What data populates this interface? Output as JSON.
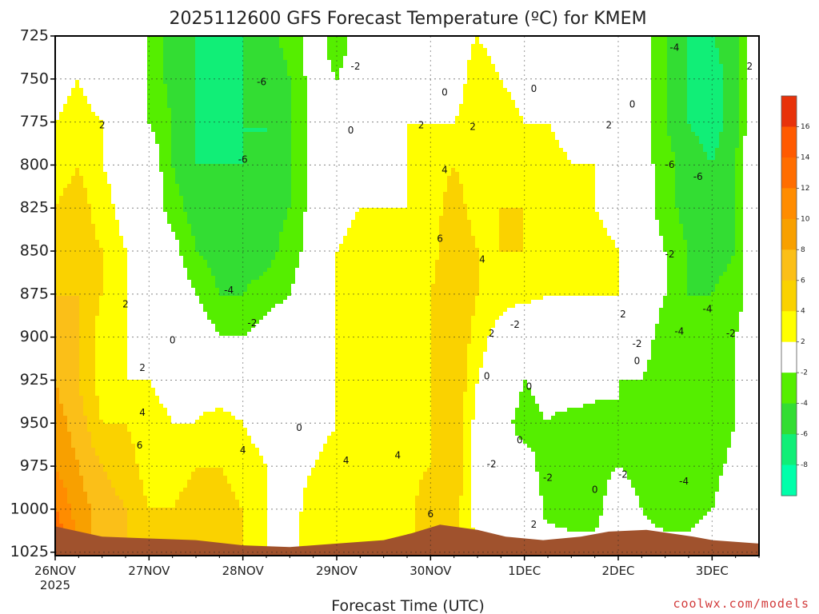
{
  "title": "2025112600 GFS Forecast Temperature (ºC) for KMEM",
  "credit": "coolwx.com/models",
  "chart_data": {
    "type": "heatmap",
    "title": "2025112600 GFS Forecast Temperature (ºC) for KMEM",
    "xlabel": "Forecast Time (UTC)",
    "ylabel": "",
    "x_ticks": [
      {
        "label": "26NOV",
        "sub": "2025"
      },
      {
        "label": "27NOV",
        "sub": ""
      },
      {
        "label": "28NOV",
        "sub": ""
      },
      {
        "label": "29NOV",
        "sub": ""
      },
      {
        "label": "30NOV",
        "sub": ""
      },
      {
        "label": "1DEC",
        "sub": ""
      },
      {
        "label": "2DEC",
        "sub": ""
      },
      {
        "label": "3DEC",
        "sub": ""
      }
    ],
    "x_range_days": [
      0,
      7.5
    ],
    "y_ticks": [
      725,
      750,
      775,
      800,
      825,
      850,
      875,
      900,
      925,
      950,
      975,
      1000,
      1025
    ],
    "y_range": [
      725,
      1027
    ],
    "y_inverted": true,
    "grid": true,
    "colorbar": {
      "labels": [
        16,
        14,
        12,
        10,
        8,
        6,
        4,
        2,
        -2,
        -4,
        -6,
        -8
      ],
      "bins": [
        {
          "min": 16,
          "max": 18,
          "color": "#e8320a"
        },
        {
          "min": 14,
          "max": 16,
          "color": "#ff5a00"
        },
        {
          "min": 12,
          "max": 14,
          "color": "#ff6d00"
        },
        {
          "min": 10,
          "max": 12,
          "color": "#ff8c00"
        },
        {
          "min": 8,
          "max": 10,
          "color": "#f8a000"
        },
        {
          "min": 6,
          "max": 8,
          "color": "#fbbf18"
        },
        {
          "min": 4,
          "max": 6,
          "color": "#fad200"
        },
        {
          "min": 2,
          "max": 4,
          "color": "#ffff00"
        },
        {
          "min": -2,
          "max": 2,
          "color": "#ffffff"
        },
        {
          "min": -4,
          "max": -2,
          "color": "#55ee00"
        },
        {
          "min": -6,
          "max": -4,
          "color": "#33dd33"
        },
        {
          "min": -8,
          "max": -6,
          "color": "#11ee77"
        },
        {
          "min": -10,
          "max": -8,
          "color": "#00ffaa"
        }
      ]
    },
    "field": {
      "x_days": [
        0,
        0.25,
        0.5,
        0.75,
        1,
        1.25,
        1.5,
        1.75,
        2,
        2.25,
        2.5,
        2.75,
        3,
        3.25,
        3.5,
        3.75,
        4,
        4.25,
        4.5,
        4.75,
        5,
        5.25,
        5.5,
        5.75,
        6,
        6.25,
        6.5,
        6.75,
        7,
        7.25,
        7.5
      ],
      "levels_hpa": [
        725,
        750,
        775,
        800,
        825,
        850,
        875,
        900,
        925,
        950,
        975,
        1000,
        1025
      ],
      "temps_c": [
        [
          0,
          2,
          0,
          -1,
          -2,
          -5,
          -6,
          -7,
          -6,
          -5,
          -3,
          -1,
          -3,
          -1,
          0,
          1,
          1,
          1,
          2,
          1,
          0,
          0,
          0,
          0,
          0,
          -1,
          -4,
          -6,
          -6,
          -5,
          2
        ],
        [
          1,
          2,
          0,
          -1,
          -2,
          -5,
          -6,
          -7,
          -6,
          -6,
          -4,
          -1,
          -2,
          -1,
          0,
          1,
          2,
          1,
          3,
          2,
          1,
          0,
          1,
          0,
          0,
          -1,
          -4,
          -6,
          -7,
          -5,
          2
        ],
        [
          2,
          3,
          2,
          0,
          -2,
          -4,
          -6,
          -7,
          -6,
          -6,
          -4,
          -1,
          -1,
          0,
          1,
          2,
          2,
          2,
          3,
          3,
          2,
          2,
          1,
          1,
          0,
          -1,
          -4,
          -6,
          -7,
          -5,
          2
        ],
        [
          3,
          4,
          2,
          1,
          0,
          -4,
          -6,
          -6,
          -6,
          -6,
          -4,
          -1,
          0,
          0,
          1,
          2,
          3,
          4,
          3,
          4,
          3,
          3,
          2,
          2,
          1,
          -1,
          -3,
          -5,
          -6,
          -4,
          2
        ],
        [
          4,
          5,
          3,
          1,
          0,
          -3,
          -5,
          -6,
          -6,
          -5,
          -4,
          -1,
          1,
          2,
          2,
          2,
          3,
          5,
          3,
          4,
          4,
          3,
          3,
          2,
          1,
          -1,
          -3,
          -5,
          -6,
          -4,
          1
        ],
        [
          5,
          5,
          4,
          2,
          0,
          -1,
          -4,
          -5,
          -5,
          -5,
          -3,
          -1,
          2,
          3,
          3,
          3,
          3,
          6,
          4,
          4,
          4,
          3,
          3,
          3,
          2,
          0,
          -2,
          -4,
          -5,
          -4,
          1
        ],
        [
          6,
          6,
          4,
          2,
          1,
          0,
          -2,
          -4,
          -4,
          -3,
          -2,
          0,
          2,
          3,
          3,
          3,
          4,
          6,
          4,
          3,
          3,
          2,
          2,
          2,
          2,
          0,
          -2,
          -4,
          -4,
          -3,
          0
        ],
        [
          7,
          6,
          3,
          2,
          1,
          1,
          0,
          -2,
          -2,
          -1,
          0,
          0,
          2,
          3,
          3,
          3,
          4,
          6,
          3,
          1,
          -2,
          0,
          1,
          1,
          0,
          -1,
          -3,
          -4,
          -4,
          -2,
          0
        ],
        [
          8,
          6,
          3,
          2,
          2,
          1,
          1,
          0,
          0,
          0,
          0,
          1,
          2,
          2,
          3,
          3,
          4,
          6,
          2,
          0,
          -2,
          -1,
          0,
          -1,
          -2,
          -2,
          -3,
          -4,
          -4,
          -2,
          0
        ],
        [
          9,
          7,
          4,
          4,
          3,
          2,
          2,
          3,
          2,
          1,
          0,
          1,
          2,
          2,
          3,
          3,
          4,
          6,
          1,
          -1,
          -3,
          -2,
          -3,
          -3,
          -2,
          -3,
          -4,
          -4,
          -4,
          -2,
          0
        ],
        [
          10,
          8,
          6,
          5,
          3,
          3,
          4,
          4,
          3,
          2,
          1,
          2,
          3,
          4,
          3,
          3,
          4,
          6,
          1,
          -1,
          -1,
          -3,
          -3,
          -3,
          -2,
          -3,
          -4,
          -4,
          -3,
          -1,
          0
        ],
        [
          12,
          9,
          7,
          6,
          4,
          4,
          5,
          5,
          4,
          2,
          1,
          3,
          4,
          3,
          3,
          3,
          6,
          5,
          1,
          1,
          1,
          -3,
          -3,
          -3,
          0,
          -2,
          -3,
          -3,
          -2,
          0,
          0
        ],
        [
          15,
          10,
          7,
          6,
          5,
          5,
          6,
          5,
          4,
          2,
          1,
          4,
          4,
          3,
          3,
          3,
          6,
          4,
          2,
          2,
          1,
          0,
          -1,
          -1,
          0,
          -1,
          -1,
          -1,
          0,
          0,
          0
        ]
      ]
    },
    "contour_labels": [
      {
        "text": "2",
        "x": 0.5,
        "p": 777
      },
      {
        "text": "2",
        "x": 0.75,
        "p": 881
      },
      {
        "text": "2",
        "x": 0.93,
        "p": 918
      },
      {
        "text": "4",
        "x": 0.93,
        "p": 944
      },
      {
        "text": "6",
        "x": 0.9,
        "p": 963
      },
      {
        "text": "0",
        "x": 1.25,
        "p": 902
      },
      {
        "text": "-4",
        "x": 1.85,
        "p": 873
      },
      {
        "text": "-2",
        "x": 2.1,
        "p": 892
      },
      {
        "text": "-6",
        "x": 2.0,
        "p": 797
      },
      {
        "text": "-6",
        "x": 2.2,
        "p": 752
      },
      {
        "text": "4",
        "x": 2.0,
        "p": 966
      },
      {
        "text": "0",
        "x": 2.6,
        "p": 953
      },
      {
        "text": "4",
        "x": 3.1,
        "p": 972
      },
      {
        "text": "0",
        "x": 3.15,
        "p": 780
      },
      {
        "text": "-2",
        "x": 3.2,
        "p": 743
      },
      {
        "text": "4",
        "x": 3.65,
        "p": 969
      },
      {
        "text": "2",
        "x": 3.9,
        "p": 777
      },
      {
        "text": "0",
        "x": 4.15,
        "p": 758
      },
      {
        "text": "4",
        "x": 4.15,
        "p": 803
      },
      {
        "text": "6",
        "x": 4.1,
        "p": 843
      },
      {
        "text": "6",
        "x": 4.0,
        "p": 1003
      },
      {
        "text": "2",
        "x": 4.45,
        "p": 778
      },
      {
        "text": "4",
        "x": 4.55,
        "p": 855
      },
      {
        "text": "2",
        "x": 4.65,
        "p": 898
      },
      {
        "text": "-2",
        "x": 4.9,
        "p": 893
      },
      {
        "text": "0",
        "x": 4.6,
        "p": 923
      },
      {
        "text": "0",
        "x": 5.1,
        "p": 756
      },
      {
        "text": "2",
        "x": 5.9,
        "p": 777
      },
      {
        "text": "0",
        "x": 5.05,
        "p": 929
      },
      {
        "text": "0",
        "x": 4.95,
        "p": 960
      },
      {
        "text": "-2",
        "x": 4.65,
        "p": 974
      },
      {
        "text": "-2",
        "x": 5.25,
        "p": 982
      },
      {
        "text": "0",
        "x": 5.75,
        "p": 989
      },
      {
        "text": "-2",
        "x": 6.05,
        "p": 980
      },
      {
        "text": "2",
        "x": 5.1,
        "p": 1009
      },
      {
        "text": "2",
        "x": 6.05,
        "p": 887
      },
      {
        "text": "-2",
        "x": 6.2,
        "p": 904
      },
      {
        "text": "0",
        "x": 6.2,
        "p": 914
      },
      {
        "text": "0",
        "x": 6.15,
        "p": 765
      },
      {
        "text": "-6",
        "x": 6.55,
        "p": 800
      },
      {
        "text": "-6",
        "x": 6.85,
        "p": 807
      },
      {
        "text": "-4",
        "x": 6.6,
        "p": 732
      },
      {
        "text": "-2",
        "x": 6.55,
        "p": 852
      },
      {
        "text": "-4",
        "x": 6.65,
        "p": 897
      },
      {
        "text": "-4",
        "x": 6.95,
        "p": 884
      },
      {
        "text": "-2",
        "x": 7.2,
        "p": 898
      },
      {
        "text": "-4",
        "x": 6.7,
        "p": 984
      },
      {
        "text": "2",
        "x": 7.4,
        "p": 743
      }
    ],
    "terrain": {
      "color": "#a0522d",
      "x_days": [
        0,
        0.5,
        1,
        1.5,
        2,
        2.5,
        3,
        3.5,
        3.8,
        4.1,
        4.5,
        4.8,
        5.2,
        5.6,
        5.9,
        6.3,
        6.8,
        7.0,
        7.5
      ],
      "p_hpa": [
        1010,
        1016,
        1017,
        1018,
        1021,
        1022,
        1020,
        1018,
        1014,
        1009,
        1012,
        1016,
        1018,
        1016,
        1013,
        1012,
        1016,
        1018,
        1020
      ]
    }
  }
}
